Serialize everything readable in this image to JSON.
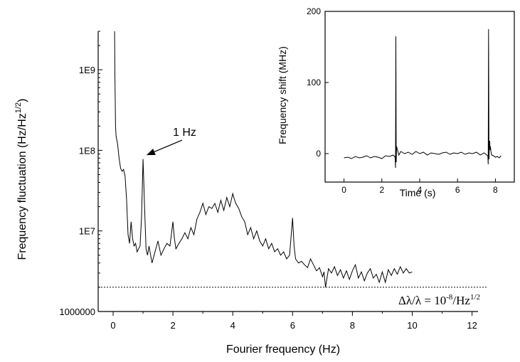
{
  "chart_data": [
    {
      "type": "line",
      "yscale": "log",
      "xlabel": "Fourier frequency (Hz)",
      "ylabel_main": "Frequency fluctuation (Hz/Hz",
      "ylabel_sup": "1/2",
      "ylabel_close": ")",
      "xlim": [
        -0.5,
        12.2
      ],
      "ylim": [
        1000000,
        3000000000
      ],
      "x_ticks": [
        {
          "v": 0,
          "label": "0"
        },
        {
          "v": 2,
          "label": "2"
        },
        {
          "v": 4,
          "label": "4"
        },
        {
          "v": 6,
          "label": "6"
        },
        {
          "v": 8,
          "label": "8"
        },
        {
          "v": 10,
          "label": "10"
        },
        {
          "v": 12,
          "label": "12"
        }
      ],
      "y_ticks": [
        {
          "v": 1000000,
          "label": "1000000"
        },
        {
          "v": 10000000,
          "label": "1E7"
        },
        {
          "v": 100000000,
          "label": "1E8"
        },
        {
          "v": 1000000000,
          "label": "1E9"
        }
      ],
      "annotation": {
        "label": "1 Hz",
        "x": 1.0,
        "y": 78000000
      },
      "reference_line": {
        "y": 2000000,
        "label_main": "Δλ/λ = 10",
        "label_exp": "-8",
        "label_unit": "/Hz",
        "label_unit_exp": "1/2"
      },
      "series": [
        {
          "x": [
            0.05,
            0.06,
            0.07,
            0.08,
            0.1,
            0.15,
            0.2,
            0.25,
            0.3,
            0.35,
            0.4,
            0.45,
            0.5,
            0.55,
            0.6,
            0.65,
            0.7,
            0.75,
            0.8,
            0.85,
            0.9,
            0.95,
            1.0,
            1.05,
            1.1,
            1.15,
            1.2,
            1.3,
            1.4,
            1.5,
            1.6,
            1.7,
            1.8,
            1.9,
            2.0,
            2.05,
            2.1,
            2.2,
            2.3,
            2.4,
            2.5,
            2.6,
            2.7,
            2.8,
            2.9,
            3.0,
            3.1,
            3.2,
            3.3,
            3.4,
            3.5,
            3.6,
            3.7,
            3.8,
            3.9,
            4.0,
            4.05,
            4.1,
            4.2,
            4.3,
            4.4,
            4.5,
            4.6,
            4.7,
            4.8,
            4.9,
            5.0,
            5.1,
            5.2,
            5.3,
            5.4,
            5.5,
            5.6,
            5.7,
            5.8,
            5.9,
            6.0,
            6.05,
            6.1,
            6.2,
            6.3,
            6.4,
            6.5,
            6.6,
            6.7,
            6.8,
            6.9,
            7.0,
            7.05,
            7.1,
            7.2,
            7.3,
            7.4,
            7.5,
            7.6,
            7.7,
            7.8,
            7.9,
            8.0,
            8.1,
            8.2,
            8.3,
            8.4,
            8.5,
            8.6,
            8.7,
            8.8,
            8.9,
            9.0,
            9.1,
            9.2,
            9.3,
            9.4,
            9.5,
            9.6,
            9.7,
            9.8,
            9.9,
            10.0
          ],
          "y": [
            3000000000,
            900000000,
            400000000,
            200000000,
            150000000,
            120000000,
            80000000,
            60000000,
            55000000,
            58000000,
            48000000,
            25000000,
            9000000,
            7000000,
            13000000,
            8000000,
            6500000,
            7000000,
            5500000,
            6000000,
            6500000,
            15000000,
            78000000,
            20000000,
            6000000,
            5000000,
            6500000,
            4000000,
            5500000,
            7500000,
            5000000,
            6000000,
            7000000,
            6500000,
            13000000,
            8000000,
            6000000,
            7000000,
            8000000,
            9500000,
            8000000,
            11000000,
            9000000,
            14000000,
            17000000,
            22000000,
            16000000,
            20000000,
            19000000,
            22000000,
            17000000,
            24000000,
            18000000,
            26000000,
            20000000,
            29000000,
            25000000,
            22000000,
            19000000,
            15000000,
            13000000,
            9000000,
            11000000,
            8000000,
            10000000,
            7500000,
            6500000,
            8000000,
            6000000,
            7000000,
            5500000,
            6000000,
            5000000,
            5500000,
            4500000,
            5000000,
            14500000,
            6500000,
            4500000,
            4000000,
            4200000,
            3800000,
            3500000,
            4500000,
            3800000,
            3200000,
            3500000,
            2700000,
            3100000,
            2000000,
            3400000,
            3000000,
            3600000,
            2800000,
            3300000,
            2600000,
            3200000,
            2500000,
            3200000,
            3800000,
            2600000,
            3100000,
            2400000,
            3000000,
            3400000,
            2600000,
            2900000,
            2300000,
            3100000,
            2300000,
            3300000,
            2800000,
            3400000,
            2900000,
            3600000,
            3000000,
            3400000,
            3000000,
            3100000
          ],
          "color": "#000000"
        }
      ]
    },
    {
      "type": "line",
      "xlabel": "Time (s)",
      "ylabel": "Frequency shift (MHz)",
      "xlim": [
        -1,
        9
      ],
      "ylim": [
        -40,
        200
      ],
      "x_ticks": [
        {
          "v": 0,
          "label": "0"
        },
        {
          "v": 2,
          "label": "2"
        },
        {
          "v": 4,
          "label": "4"
        },
        {
          "v": 6,
          "label": "6"
        },
        {
          "v": 8,
          "label": "8"
        }
      ],
      "y_ticks": [
        {
          "v": 0,
          "label": "0"
        },
        {
          "v": 100,
          "label": "100"
        },
        {
          "v": 200,
          "label": "200"
        }
      ],
      "series": [
        {
          "x": [
            0.0,
            0.2,
            0.4,
            0.6,
            0.8,
            1.0,
            1.2,
            1.4,
            1.6,
            1.8,
            2.0,
            2.2,
            2.4,
            2.6,
            2.7,
            2.72,
            2.74,
            2.76,
            2.78,
            2.8,
            2.9,
            3.0,
            3.2,
            3.4,
            3.6,
            3.8,
            4.0,
            4.2,
            4.4,
            4.6,
            4.8,
            5.0,
            5.2,
            5.4,
            5.6,
            5.8,
            6.0,
            6.2,
            6.4,
            6.6,
            6.8,
            7.0,
            7.2,
            7.4,
            7.6,
            7.62,
            7.64,
            7.66,
            7.68,
            7.7,
            7.72,
            7.74,
            7.76,
            7.8,
            7.9,
            8.0,
            8.1,
            8.2,
            8.3
          ],
          "y": [
            -6,
            -5,
            -7,
            -4,
            -6,
            -5,
            -3,
            -6,
            -4,
            -5,
            -7,
            -3,
            -4,
            -2,
            -5,
            -20,
            165,
            -12,
            10,
            8,
            -2,
            3,
            0,
            2,
            -1,
            3,
            0,
            2,
            -2,
            1,
            0,
            -1,
            1,
            2,
            -1,
            1,
            0,
            2,
            -1,
            1,
            0,
            2,
            -2,
            1,
            -3,
            -15,
            175,
            -8,
            12,
            18,
            5,
            10,
            4,
            -2,
            -3,
            -5,
            -4,
            -6,
            -3
          ],
          "color": "#000000"
        }
      ]
    }
  ]
}
